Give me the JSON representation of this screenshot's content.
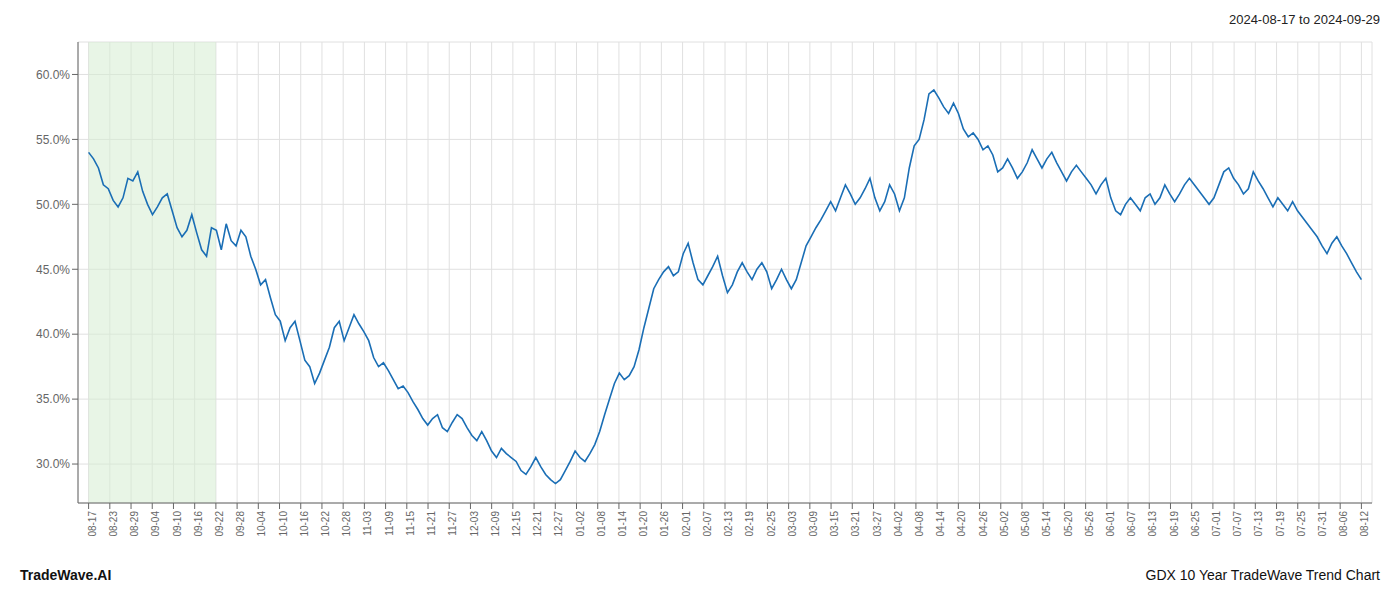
{
  "chart_data": {
    "type": "line",
    "title": "GDX 10 Year TradeWave Trend Chart",
    "subtitle": "2024-08-17 to 2024-09-29",
    "annotations": [
      "TradeWave.AI"
    ],
    "color": "#1a6eb5",
    "grid": true,
    "ylim": [
      27.0,
      62.5
    ],
    "yticks": [
      {
        "value": 30.0,
        "label": "30.0%"
      },
      {
        "value": 35.0,
        "label": "35.0%"
      },
      {
        "value": 40.0,
        "label": "40.0%"
      },
      {
        "value": 45.0,
        "label": "45.0%"
      },
      {
        "value": 50.0,
        "label": "50.0%"
      },
      {
        "value": 55.0,
        "label": "55.0%"
      },
      {
        "value": 60.0,
        "label": "60.0%"
      }
    ],
    "xlim": [
      -0.5,
      60.5
    ],
    "xticks": [
      {
        "value": 0,
        "label": "08-17"
      },
      {
        "value": 1,
        "label": "08-23"
      },
      {
        "value": 2,
        "label": "08-29"
      },
      {
        "value": 3,
        "label": "09-04"
      },
      {
        "value": 4,
        "label": "09-10"
      },
      {
        "value": 5,
        "label": "09-16"
      },
      {
        "value": 6,
        "label": "09-22"
      },
      {
        "value": 7,
        "label": "09-28"
      },
      {
        "value": 8,
        "label": "10-04"
      },
      {
        "value": 9,
        "label": "10-10"
      },
      {
        "value": 10,
        "label": "10-16"
      },
      {
        "value": 11,
        "label": "10-22"
      },
      {
        "value": 12,
        "label": "10-28"
      },
      {
        "value": 13,
        "label": "11-03"
      },
      {
        "value": 14,
        "label": "11-09"
      },
      {
        "value": 15,
        "label": "11-15"
      },
      {
        "value": 16,
        "label": "11-21"
      },
      {
        "value": 17,
        "label": "11-27"
      },
      {
        "value": 18,
        "label": "12-03"
      },
      {
        "value": 19,
        "label": "12-09"
      },
      {
        "value": 20,
        "label": "12-15"
      },
      {
        "value": 21,
        "label": "12-21"
      },
      {
        "value": 22,
        "label": "12-27"
      },
      {
        "value": 23,
        "label": "01-02"
      },
      {
        "value": 24,
        "label": "01-08"
      },
      {
        "value": 25,
        "label": "01-14"
      },
      {
        "value": 26,
        "label": "01-20"
      },
      {
        "value": 27,
        "label": "01-26"
      },
      {
        "value": 28,
        "label": "02-01"
      },
      {
        "value": 29,
        "label": "02-07"
      },
      {
        "value": 30,
        "label": "02-13"
      },
      {
        "value": 31,
        "label": "02-19"
      },
      {
        "value": 32,
        "label": "02-25"
      },
      {
        "value": 33,
        "label": "03-03"
      },
      {
        "value": 34,
        "label": "03-09"
      },
      {
        "value": 35,
        "label": "03-15"
      },
      {
        "value": 36,
        "label": "03-21"
      },
      {
        "value": 37,
        "label": "03-27"
      },
      {
        "value": 38,
        "label": "04-02"
      },
      {
        "value": 39,
        "label": "04-08"
      },
      {
        "value": 40,
        "label": "04-14"
      },
      {
        "value": 41,
        "label": "04-20"
      },
      {
        "value": 42,
        "label": "04-26"
      },
      {
        "value": 43,
        "label": "05-02"
      },
      {
        "value": 44,
        "label": "05-08"
      },
      {
        "value": 45,
        "label": "05-14"
      },
      {
        "value": 46,
        "label": "05-20"
      },
      {
        "value": 47,
        "label": "05-26"
      },
      {
        "value": 48,
        "label": "06-01"
      },
      {
        "value": 49,
        "label": "06-07"
      },
      {
        "value": 50,
        "label": "06-13"
      },
      {
        "value": 51,
        "label": "06-19"
      },
      {
        "value": 52,
        "label": "06-25"
      },
      {
        "value": 53,
        "label": "07-01"
      },
      {
        "value": 54,
        "label": "07-07"
      },
      {
        "value": 55,
        "label": "07-13"
      },
      {
        "value": 56,
        "label": "07-19"
      },
      {
        "value": 57,
        "label": "07-25"
      },
      {
        "value": 58,
        "label": "07-31"
      },
      {
        "value": 59,
        "label": "08-06"
      },
      {
        "value": 60,
        "label": "08-12"
      }
    ],
    "span": {
      "from": "08-17",
      "to": "09-22",
      "color": "#d6ecd2"
    },
    "values": [
      54.0,
      53.5,
      52.8,
      51.5,
      51.2,
      50.3,
      49.8,
      50.5,
      52.0,
      51.8,
      52.5,
      51.0,
      50.0,
      49.2,
      49.8,
      50.5,
      50.8,
      49.5,
      48.2,
      47.5,
      48.0,
      49.2,
      47.8,
      46.5,
      46.0,
      48.2,
      48.0,
      46.5,
      48.5,
      47.2,
      46.8,
      48.0,
      47.5,
      46.0,
      45.0,
      43.8,
      44.2,
      42.8,
      41.5,
      41.0,
      39.5,
      40.5,
      41.0,
      39.5,
      38.0,
      37.5,
      36.2,
      37.0,
      38.0,
      39.0,
      40.5,
      41.0,
      39.5,
      40.5,
      41.5,
      40.8,
      40.2,
      39.5,
      38.2,
      37.5,
      37.8,
      37.2,
      36.5,
      35.8,
      36.0,
      35.5,
      34.8,
      34.2,
      33.5,
      33.0,
      33.5,
      33.8,
      32.8,
      32.5,
      33.2,
      33.8,
      33.5,
      32.8,
      32.2,
      31.8,
      32.5,
      31.8,
      31.0,
      30.5,
      31.2,
      30.8,
      30.5,
      30.2,
      29.5,
      29.2,
      29.8,
      30.5,
      29.8,
      29.2,
      28.8,
      28.5,
      28.8,
      29.5,
      30.2,
      31.0,
      30.5,
      30.2,
      30.8,
      31.5,
      32.5,
      33.8,
      35.0,
      36.2,
      37.0,
      36.5,
      36.8,
      37.5,
      38.8,
      40.5,
      42.0,
      43.5,
      44.2,
      44.8,
      45.2,
      44.5,
      44.8,
      46.2,
      47.0,
      45.5,
      44.2,
      43.8,
      44.5,
      45.2,
      46.0,
      44.5,
      43.2,
      43.8,
      44.8,
      45.5,
      44.8,
      44.2,
      45.0,
      45.5,
      44.8,
      43.5,
      44.2,
      45.0,
      44.2,
      43.5,
      44.2,
      45.5,
      46.8,
      47.5,
      48.2,
      48.8,
      49.5,
      50.2,
      49.5,
      50.5,
      51.5,
      50.8,
      50.0,
      50.5,
      51.2,
      52.0,
      50.5,
      49.5,
      50.2,
      51.5,
      50.8,
      49.5,
      50.5,
      52.8,
      54.5,
      55.0,
      56.5,
      58.5,
      58.8,
      58.2,
      57.5,
      57.0,
      57.8,
      57.0,
      55.8,
      55.2,
      55.5,
      55.0,
      54.2,
      54.5,
      53.8,
      52.5,
      52.8,
      53.5,
      52.8,
      52.0,
      52.5,
      53.2,
      54.2,
      53.5,
      52.8,
      53.5,
      54.0,
      53.2,
      52.5,
      51.8,
      52.5,
      53.0,
      52.5,
      52.0,
      51.5,
      50.8,
      51.5,
      52.0,
      50.5,
      49.5,
      49.2,
      50.0,
      50.5,
      50.0,
      49.5,
      50.5,
      50.8,
      50.0,
      50.5,
      51.5,
      50.8,
      50.2,
      50.8,
      51.5,
      52.0,
      51.5,
      51.0,
      50.5,
      50.0,
      50.5,
      51.5,
      52.5,
      52.8,
      52.0,
      51.5,
      50.8,
      51.2,
      52.5,
      51.8,
      51.2,
      50.5,
      49.8,
      50.5,
      50.0,
      49.5,
      50.2,
      49.5,
      49.0,
      48.5,
      48.0,
      47.5,
      46.8,
      46.2,
      47.0,
      47.5,
      46.8,
      46.2,
      45.5,
      44.8,
      44.2
    ]
  }
}
